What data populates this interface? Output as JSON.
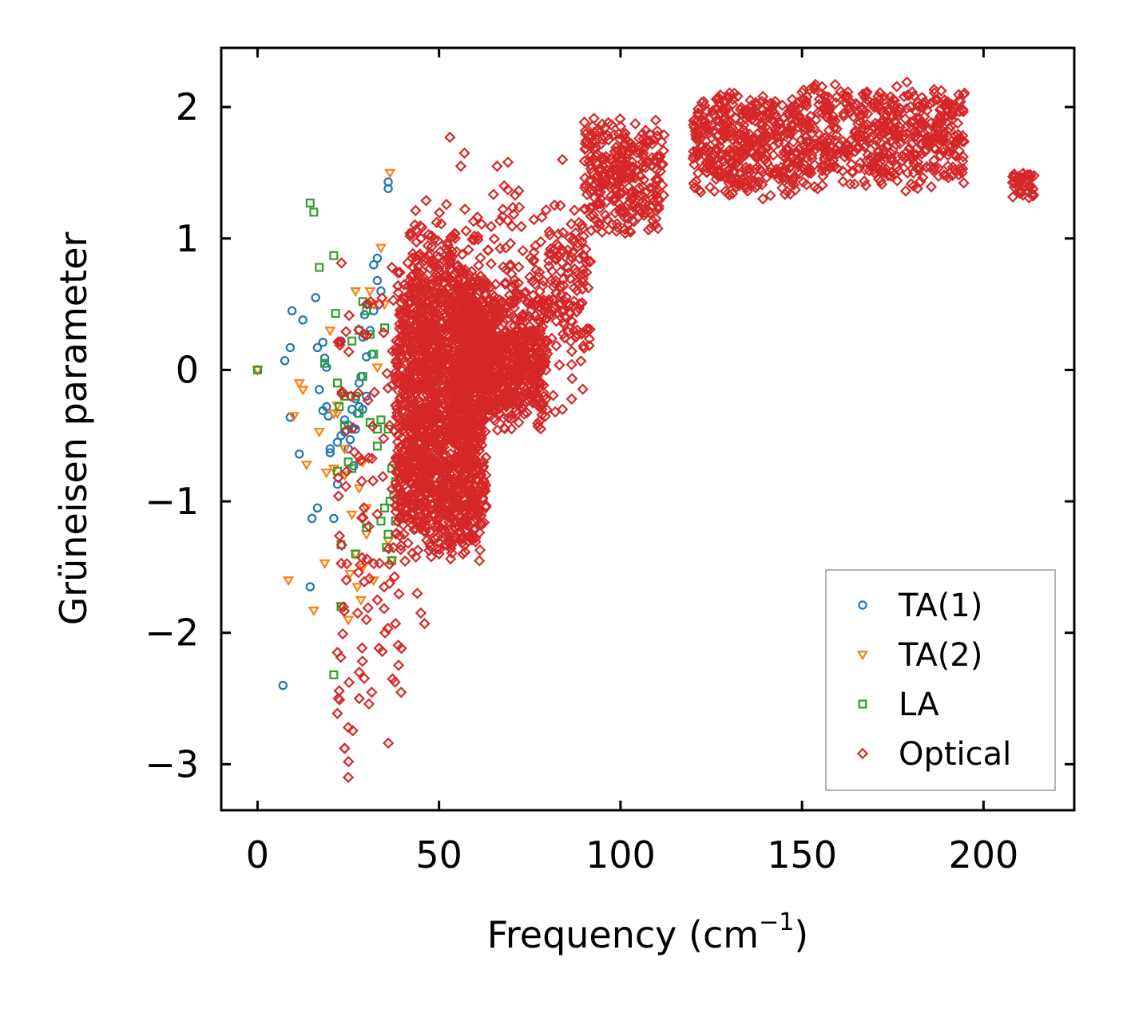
{
  "chart_data": {
    "type": "scatter",
    "title": "",
    "xlabel": "Frequency (cm",
    "xlabel_sup": "−1",
    "xlabel_close": ")",
    "ylabel": "Grüneisen parameter",
    "xlim": [
      -10,
      225
    ],
    "ylim": [
      -3.35,
      2.45
    ],
    "xticks": [
      0,
      50,
      100,
      150,
      200
    ],
    "xtick_labels": [
      "0",
      "50",
      "100",
      "150",
      "200"
    ],
    "yticks": [
      -3,
      -2,
      -1,
      0,
      1,
      2
    ],
    "ytick_labels": [
      "−3",
      "−2",
      "−1",
      "0",
      "1",
      "2"
    ],
    "grid": false,
    "legend_position": "lower-right",
    "series": [
      {
        "name": "TA(1)",
        "marker": "circle",
        "color": "#1f77b4",
        "points": [
          [
            0,
            0
          ],
          [
            7,
            -2.4
          ],
          [
            7.5,
            0.07
          ],
          [
            9,
            0.17
          ],
          [
            9,
            -0.36
          ],
          [
            9.5,
            0.45
          ],
          [
            11.5,
            -0.64
          ],
          [
            12.5,
            0.38
          ],
          [
            14.5,
            -1.65
          ],
          [
            15,
            -1.13
          ],
          [
            16,
            0.55
          ],
          [
            16.5,
            0.17
          ],
          [
            16.5,
            -1.05
          ],
          [
            17,
            -0.15
          ],
          [
            18,
            0.21
          ],
          [
            18,
            -0.31
          ],
          [
            18.5,
            0.09
          ],
          [
            19,
            -0.28
          ],
          [
            19,
            0.02
          ],
          [
            19.5,
            -0.35
          ],
          [
            20,
            -0.6
          ],
          [
            20,
            -0.63
          ],
          [
            21,
            -1.13
          ],
          [
            22,
            -0.55
          ],
          [
            22,
            -0.87
          ],
          [
            23,
            -0.5
          ],
          [
            23,
            0.22
          ],
          [
            24,
            -0.47
          ],
          [
            24,
            -0.38
          ],
          [
            25,
            -0.42
          ],
          [
            25,
            -0.6
          ],
          [
            25.5,
            -0.53
          ],
          [
            26,
            -0.3
          ],
          [
            26,
            -0.45
          ],
          [
            26.5,
            -0.73
          ],
          [
            27,
            -0.45
          ],
          [
            27,
            -0.22
          ],
          [
            27.5,
            -0.33
          ],
          [
            28,
            -0.1
          ],
          [
            28,
            -0.28
          ],
          [
            28.5,
            -0.05
          ],
          [
            29,
            0.25
          ],
          [
            29,
            -0.3
          ],
          [
            29.5,
            0.42
          ],
          [
            30,
            0.1
          ],
          [
            30,
            -0.2
          ],
          [
            30.5,
            0.5
          ],
          [
            31,
            0.3
          ],
          [
            31.5,
            0.12
          ],
          [
            32,
            0.8
          ],
          [
            32,
            0.45
          ],
          [
            33,
            0.68
          ],
          [
            33,
            0.85
          ],
          [
            34,
            0.6
          ],
          [
            36,
            1.43
          ],
          [
            36,
            1.38
          ]
        ]
      },
      {
        "name": "TA(2)",
        "marker": "triangle-down",
        "color": "#ff7f0e",
        "points": [
          [
            0,
            0
          ],
          [
            8.5,
            -1.6
          ],
          [
            10,
            -0.35
          ],
          [
            11.5,
            -0.1
          ],
          [
            12.5,
            -0.15
          ],
          [
            13.5,
            -0.72
          ],
          [
            15.5,
            -1.83
          ],
          [
            17,
            -0.47
          ],
          [
            18.5,
            -1.47
          ],
          [
            19,
            -0.78
          ],
          [
            20,
            0.3
          ],
          [
            21,
            -0.75
          ],
          [
            21,
            -0.33
          ],
          [
            22,
            -0.33
          ],
          [
            22,
            -0.27
          ],
          [
            23,
            -1.8
          ],
          [
            24,
            -0.6
          ],
          [
            24,
            -0.8
          ],
          [
            25,
            -1.9
          ],
          [
            25.5,
            -1.55
          ],
          [
            26,
            -1.1
          ],
          [
            27,
            -1.4
          ],
          [
            27,
            0.6
          ],
          [
            27.5,
            -1.65
          ],
          [
            28,
            -0.9
          ],
          [
            28.5,
            -1.75
          ],
          [
            29,
            -0.7
          ],
          [
            29,
            -1.5
          ],
          [
            30,
            -1.05
          ],
          [
            30,
            -1.25
          ],
          [
            31,
            0.6
          ],
          [
            32,
            0.5
          ],
          [
            32,
            -1.6
          ],
          [
            33,
            0.02
          ],
          [
            34,
            0.93
          ],
          [
            35,
            0.5
          ],
          [
            36,
            -1.3
          ],
          [
            36.5,
            1.5
          ],
          [
            37,
            -1.45
          ]
        ]
      },
      {
        "name": "LA",
        "marker": "square",
        "color": "#2ca02c",
        "points": [
          [
            0,
            0
          ],
          [
            14.5,
            1.27
          ],
          [
            15.5,
            1.2
          ],
          [
            17,
            0.78
          ],
          [
            18.5,
            0.05
          ],
          [
            21,
            0.87
          ],
          [
            21,
            -2.32
          ],
          [
            21.5,
            0.43
          ],
          [
            22,
            -0.1
          ],
          [
            22,
            -0.77
          ],
          [
            22.5,
            -0.28
          ],
          [
            23,
            -1.33
          ],
          [
            23,
            -1.8
          ],
          [
            24,
            -0.2
          ],
          [
            24,
            -0.42
          ],
          [
            25,
            -0.7
          ],
          [
            26,
            0.22
          ],
          [
            26,
            -0.75
          ],
          [
            27,
            -0.2
          ],
          [
            27,
            -1.4
          ],
          [
            28,
            0.3
          ],
          [
            28,
            -0.33
          ],
          [
            29,
            0.52
          ],
          [
            29,
            -0.05
          ],
          [
            30,
            0.45
          ],
          [
            30,
            -1.2
          ],
          [
            31,
            0.27
          ],
          [
            31,
            -0.4
          ],
          [
            32,
            0.12
          ],
          [
            33,
            -0.45
          ],
          [
            33,
            -0.58
          ],
          [
            34,
            -0.38
          ],
          [
            34,
            -1.15
          ],
          [
            35,
            0.32
          ],
          [
            35,
            -1.05
          ],
          [
            35.5,
            -1.35
          ],
          [
            36,
            -0.45
          ],
          [
            36,
            -1.25
          ],
          [
            36.5,
            -1.0
          ],
          [
            37,
            -0.75
          ],
          [
            37,
            -1.45
          ],
          [
            37.5,
            -0.95
          ],
          [
            38,
            -0.85
          ],
          [
            38,
            -1.15
          ]
        ]
      },
      {
        "name": "Optical",
        "marker": "diamond",
        "color": "#d62728",
        "clusters": [
          {
            "x": [
              38,
              63
            ],
            "y": [
              -1.5,
              0.9
            ],
            "n": 1400
          },
          {
            "x": [
              42,
              60
            ],
            "y": [
              -1.4,
              1.4
            ],
            "n": 500
          },
          {
            "x": [
              54,
              80
            ],
            "y": [
              -0.5,
              0.75
            ],
            "n": 500
          },
          {
            "x": [
              56,
              78
            ],
            "y": [
              -0.3,
              0.35
            ],
            "n": 300
          },
          {
            "x": [
              22,
              40
            ],
            "y": [
              -3.1,
              0.9
            ],
            "n": 110
          },
          {
            "x": [
              60,
              90
            ],
            "y": [
              -0.4,
              1.5
            ],
            "n": 160
          },
          {
            "x": [
              80,
              92
            ],
            "y": [
              0.1,
              1.2
            ],
            "n": 90
          },
          {
            "x": [
              90,
              112
            ],
            "y": [
              1.0,
              1.95
            ],
            "n": 300
          },
          {
            "x": [
              120,
              150
            ],
            "y": [
              1.3,
              2.15
            ],
            "n": 420
          },
          {
            "x": [
              150,
              195
            ],
            "y": [
              1.35,
              2.2
            ],
            "n": 520
          },
          {
            "x": [
              208,
              214
            ],
            "y": [
              1.3,
              1.52
            ],
            "n": 40
          }
        ],
        "points": [
          [
            53,
            1.77
          ],
          [
            56,
            1.55
          ],
          [
            57,
            1.65
          ],
          [
            37,
            0.78
          ],
          [
            46,
            -1.93
          ],
          [
            45,
            -1.85
          ],
          [
            38,
            -1.93
          ],
          [
            66,
            1.55
          ],
          [
            69,
            1.58
          ],
          [
            84,
            1.6
          ],
          [
            50,
            -1.4
          ],
          [
            52,
            -1.1
          ],
          [
            25,
            -2.72
          ],
          [
            24,
            -2.88
          ],
          [
            25,
            -3.1
          ],
          [
            28,
            -2.5
          ],
          [
            28,
            -2.3
          ],
          [
            22,
            -2.15
          ],
          [
            30,
            -1.9
          ],
          [
            33,
            -1.75
          ],
          [
            44,
            -1.7
          ],
          [
            76,
            0.0
          ],
          [
            82,
            -0.32
          ],
          [
            84,
            -0.3
          ]
        ]
      }
    ]
  }
}
